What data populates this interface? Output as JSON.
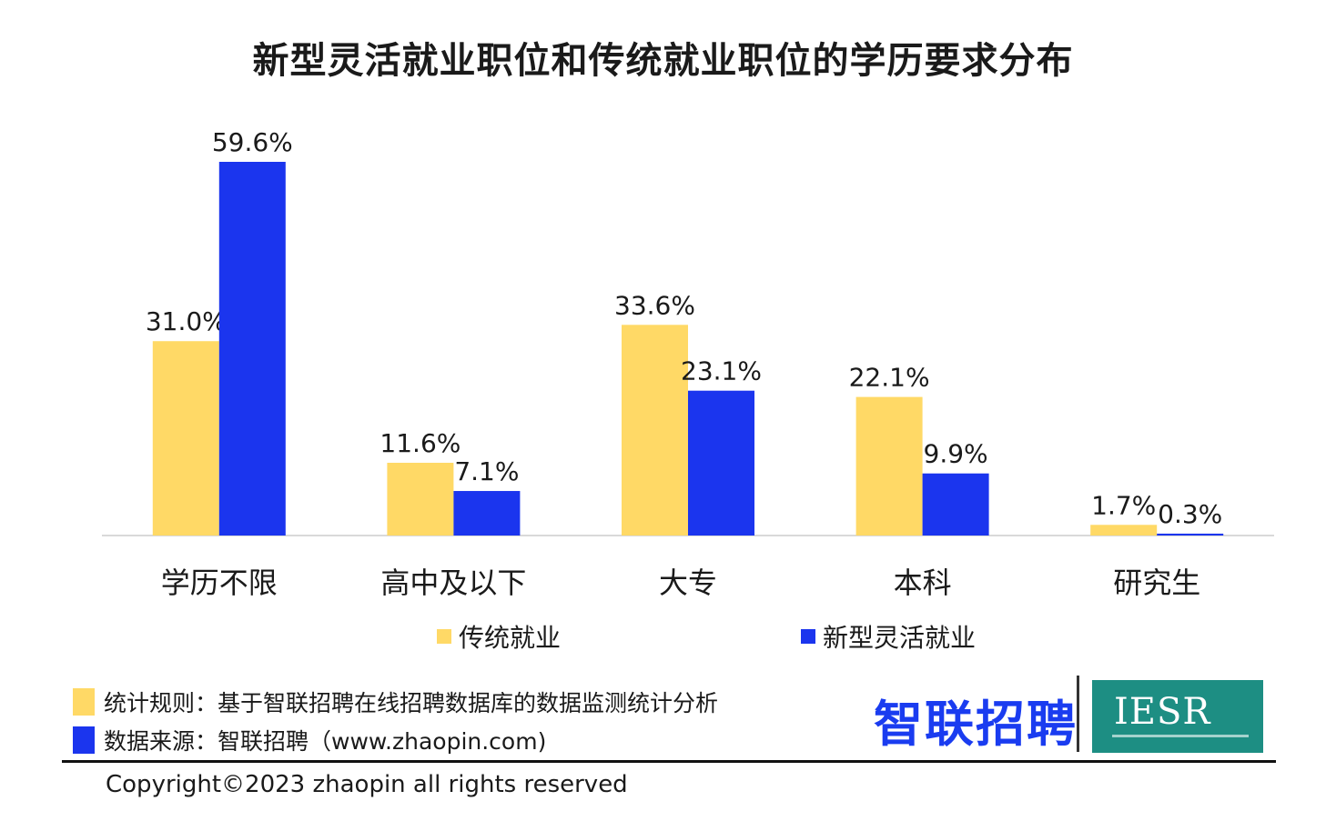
{
  "title": "新型灵活就业职位和传统就业职位的学历要求分布",
  "chart_data": {
    "type": "bar",
    "categories": [
      "学历不限",
      "高中及以下",
      "大专",
      "本科",
      "研究生"
    ],
    "series": [
      {
        "name": "传统就业",
        "values": [
          31.0,
          11.6,
          33.6,
          22.1,
          1.7
        ],
        "labels": [
          "31.0%",
          "11.6%",
          "33.6%",
          "22.1%",
          "1.7%"
        ],
        "color": "#ffd966"
      },
      {
        "name": "新型灵活就业",
        "values": [
          59.6,
          7.1,
          23.1,
          9.9,
          0.3
        ],
        "labels": [
          "59.6%",
          "7.1%",
          "23.1%",
          "9.9%",
          "0.3%"
        ],
        "color": "#1b35ee"
      }
    ],
    "ylim": [
      0,
      62
    ],
    "grid": false,
    "legend_position": "bottom"
  },
  "legend": {
    "items": [
      {
        "label": "传统就业",
        "color": "#ffd966"
      },
      {
        "label": "新型灵活就业",
        "color": "#1b35ee"
      }
    ]
  },
  "notes": {
    "rule": "统计规则：基于智联招聘在线招聘数据库的数据监测统计分析",
    "source": "数据来源：智联招聘（www.zhaopin.com)"
  },
  "logo": {
    "brand": "智联招聘",
    "partner": "IESR"
  },
  "copyright": "Copyright©2023 zhaopin all rights reserved"
}
